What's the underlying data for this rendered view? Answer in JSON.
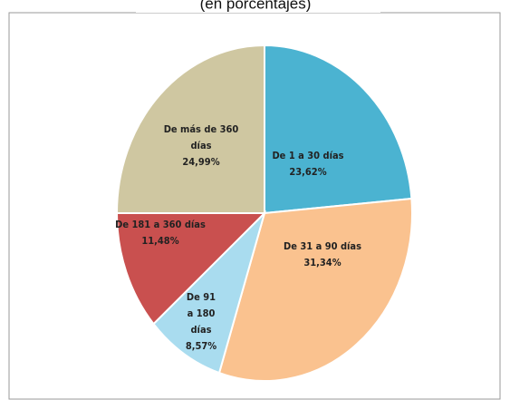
{
  "chart_data": {
    "type": "pie",
    "subtitle": "(en porcentajes)",
    "categories": [
      "De 1 a 30 días",
      "De 31 a 90 días",
      "De 91 a 180 días",
      "De 181 a 360 días",
      "De más de 360 días"
    ],
    "values": [
      23.62,
      31.34,
      8.57,
      11.48,
      24.99
    ],
    "value_labels": [
      "23,62%",
      "31,34%",
      "8,57%",
      "11,48%",
      "24,99%"
    ],
    "colors": [
      "#4bb3d1",
      "#fac28f",
      "#a9dcef",
      "#c9504f",
      "#cfc7a1"
    ]
  }
}
